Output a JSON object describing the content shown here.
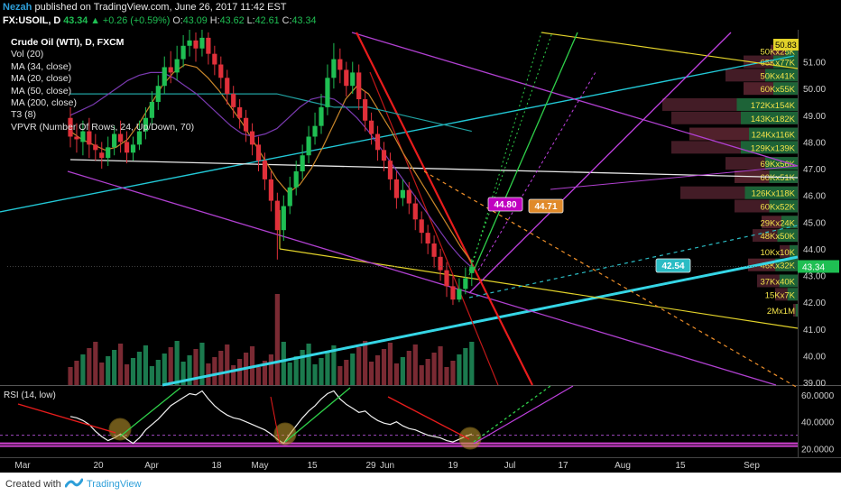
{
  "header": {
    "author": "Nezah",
    "published": "published on TradingView.com, June 26, 2017 11:42 EST",
    "ticker_line": {
      "symbol": "FX:USOIL, D",
      "last": "43.34",
      "change": "▲ +0.26 (+0.59%)",
      "open": "43.09",
      "high": "43.62",
      "low": "42.61",
      "close": "43.34",
      "o_label": "O:",
      "h_label": "H:",
      "l_label": "L:",
      "c_label": "C:"
    }
  },
  "legend": {
    "title": "Crude Oil (WTI), D, FXCM",
    "indicators": [
      "Vol (20)",
      "MA (34, close)",
      "MA (20, close)",
      "MA (50, close)",
      "MA (200, close)",
      "T3 (8)",
      "VPVR (Number Of Rows, 24, Up/Down, 70)"
    ]
  },
  "footer": {
    "created_with": "Created with",
    "brand": "TradingView"
  },
  "chart_data": [
    {
      "type": "candlestick",
      "price_axis_ticks": [
        51.0,
        50.0,
        49.0,
        48.0,
        47.0,
        46.0,
        45.0,
        44.0,
        43.0,
        42.0,
        41.0,
        40.0,
        39.0
      ],
      "price_axis_labels": [
        "51.00",
        "50.00",
        "49.00",
        "48.00",
        "47.00",
        "46.00",
        "45.00",
        "44.00",
        "43.00",
        "42.00",
        "41.00",
        "40.00",
        "39.00"
      ],
      "ylim": [
        38.9,
        52.2
      ],
      "current_price": 43.34,
      "current_price_label": "43.34",
      "top_price_label": "50.83",
      "time_axis_labels": [
        "Mar",
        "20",
        "Apr",
        "18",
        "May",
        "15",
        "29",
        "Jun",
        "19",
        "Jul",
        "17",
        "Aug",
        "15",
        "Sep"
      ],
      "annotations": [
        {
          "text": "44.80",
          "price": 44.8,
          "color": "#c000c0"
        },
        {
          "text": "44.71",
          "price": 44.71,
          "color": "#e08a2a"
        },
        {
          "text": "42.54",
          "price": 42.54,
          "color": "#2bbcc4"
        }
      ],
      "candles": [
        [
          48.9,
          48.2,
          49.3,
          47.8
        ],
        [
          48.2,
          48.1,
          48.7,
          47.6
        ],
        [
          48.0,
          48.4,
          48.8,
          47.5
        ],
        [
          48.4,
          47.9,
          48.9,
          47.4
        ],
        [
          47.9,
          47.7,
          48.3,
          47.3
        ],
        [
          47.6,
          47.4,
          48.0,
          47.0
        ],
        [
          47.4,
          47.8,
          48.2,
          47.1
        ],
        [
          47.8,
          48.3,
          48.6,
          47.5
        ],
        [
          48.3,
          48.0,
          48.8,
          47.6
        ],
        [
          48.0,
          47.6,
          48.4,
          47.2
        ],
        [
          47.6,
          47.9,
          48.2,
          47.3
        ],
        [
          47.9,
          48.4,
          48.8,
          47.7
        ],
        [
          48.4,
          48.9,
          49.3,
          48.1
        ],
        [
          48.9,
          49.5,
          49.9,
          48.6
        ],
        [
          49.5,
          50.1,
          50.5,
          49.2
        ],
        [
          50.1,
          50.8,
          51.2,
          49.8
        ],
        [
          50.8,
          50.6,
          51.4,
          50.2
        ],
        [
          50.6,
          51.1,
          51.6,
          50.3
        ],
        [
          51.1,
          51.6,
          52.0,
          50.8
        ],
        [
          51.6,
          51.8,
          52.2,
          51.2
        ],
        [
          51.8,
          51.5,
          52.1,
          51.0
        ],
        [
          51.5,
          51.9,
          52.2,
          51.2
        ],
        [
          51.9,
          51.3,
          52.1,
          50.9
        ],
        [
          51.3,
          50.9,
          51.6,
          50.5
        ],
        [
          50.9,
          50.4,
          51.2,
          50.0
        ],
        [
          50.4,
          49.8,
          50.7,
          49.4
        ],
        [
          49.8,
          49.3,
          50.1,
          48.9
        ],
        [
          49.3,
          48.9,
          49.6,
          48.5
        ],
        [
          48.9,
          48.4,
          49.2,
          48.0
        ],
        [
          48.4,
          47.9,
          48.7,
          47.5
        ],
        [
          47.9,
          47.3,
          48.2,
          46.9
        ],
        [
          47.3,
          46.6,
          47.6,
          46.2
        ],
        [
          46.6,
          45.8,
          46.9,
          45.4
        ],
        [
          45.8,
          44.7,
          46.1,
          43.6
        ],
        [
          44.7,
          45.6,
          46.0,
          44.3
        ],
        [
          45.6,
          46.3,
          46.7,
          45.3
        ],
        [
          46.3,
          46.9,
          47.3,
          46.0
        ],
        [
          46.9,
          47.5,
          47.9,
          46.6
        ],
        [
          47.5,
          48.2,
          48.6,
          47.2
        ],
        [
          48.2,
          48.6,
          49.1,
          47.9
        ],
        [
          48.6,
          49.3,
          49.8,
          48.3
        ],
        [
          49.3,
          50.4,
          50.9,
          49.0
        ],
        [
          50.4,
          51.1,
          51.7,
          50.0
        ],
        [
          51.1,
          50.7,
          51.5,
          50.2
        ],
        [
          50.7,
          50.1,
          51.0,
          49.7
        ],
        [
          50.1,
          50.6,
          51.0,
          49.8
        ],
        [
          50.6,
          49.6,
          50.9,
          49.2
        ],
        [
          49.6,
          48.8,
          49.9,
          48.4
        ],
        [
          48.8,
          48.3,
          49.1,
          47.9
        ],
        [
          48.3,
          47.7,
          48.6,
          47.3
        ],
        [
          47.7,
          47.3,
          48.0,
          46.9
        ],
        [
          47.3,
          46.6,
          47.6,
          46.2
        ],
        [
          46.6,
          45.9,
          46.9,
          45.5
        ],
        [
          45.9,
          46.2,
          46.6,
          45.6
        ],
        [
          46.2,
          45.7,
          46.5,
          45.3
        ],
        [
          45.7,
          45.1,
          46.0,
          44.7
        ],
        [
          45.1,
          44.6,
          45.4,
          44.2
        ],
        [
          44.6,
          44.2,
          44.9,
          43.8
        ],
        [
          44.2,
          43.7,
          44.5,
          43.3
        ],
        [
          43.7,
          43.2,
          44.0,
          42.8
        ],
        [
          43.2,
          42.6,
          43.5,
          42.2
        ],
        [
          42.6,
          42.1,
          43.0,
          41.9
        ],
        [
          42.1,
          42.5,
          42.9,
          42.0
        ],
        [
          42.5,
          42.9,
          43.3,
          42.3
        ],
        [
          43.09,
          43.34,
          43.62,
          42.61
        ]
      ],
      "volume_profile": [
        {
          "label": "50Kx25K",
          "price": 51.4
        },
        {
          "label": "65Kx77K",
          "price": 51.0
        },
        {
          "label": "50Kx41K",
          "price": 50.5
        },
        {
          "label": "60Kx55K",
          "price": 50.0
        },
        {
          "label": "172Kx154K",
          "price": 49.4
        },
        {
          "label": "143Kx182K",
          "price": 48.9
        },
        {
          "label": "124Kx116K",
          "price": 48.3
        },
        {
          "label": "129Kx139K",
          "price": 47.8
        },
        {
          "label": "69Kx56K",
          "price": 47.2
        },
        {
          "label": "60Kx51K",
          "price": 46.7
        },
        {
          "label": "126Kx118K",
          "price": 46.1
        },
        {
          "label": "60Kx52K",
          "price": 45.6
        },
        {
          "label": "29Kx24K",
          "price": 45.0
        },
        {
          "label": "48Kx50K",
          "price": 44.5
        },
        {
          "label": "10Kx10K",
          "price": 43.9
        },
        {
          "label": "46Kx32K",
          "price": 43.4
        },
        {
          "label": "37Kx40K",
          "price": 42.8
        },
        {
          "label": "15Kx7K",
          "price": 42.3
        },
        {
          "label": "2Mx1M",
          "price": 41.7
        }
      ],
      "colors": {
        "up": "#1fbf53",
        "down": "#e0303a",
        "vol_up": "#1b7a4e",
        "vol_down": "#7a2a33"
      }
    },
    {
      "type": "line",
      "title": "RSI (14, low)",
      "ylim": [
        15,
        66
      ],
      "tick_labels": [
        "60.0000",
        "40.0000",
        "20.0000"
      ],
      "tick_values": [
        60,
        40,
        20
      ],
      "levels": [
        30,
        24,
        22
      ],
      "values": [
        44,
        43,
        41,
        38,
        33,
        29,
        26,
        28,
        31,
        27,
        24,
        28,
        34,
        38,
        42,
        47,
        52,
        55,
        58,
        61,
        60,
        63,
        57,
        52,
        48,
        45,
        43,
        42,
        40,
        38,
        36,
        34,
        31,
        27,
        24,
        31,
        37,
        43,
        48,
        52,
        57,
        61,
        63,
        57,
        53,
        50,
        47,
        48,
        44,
        41,
        39,
        38,
        40,
        37,
        35,
        34,
        32,
        30,
        29,
        28,
        26,
        25,
        27,
        29,
        31
      ]
    }
  ]
}
